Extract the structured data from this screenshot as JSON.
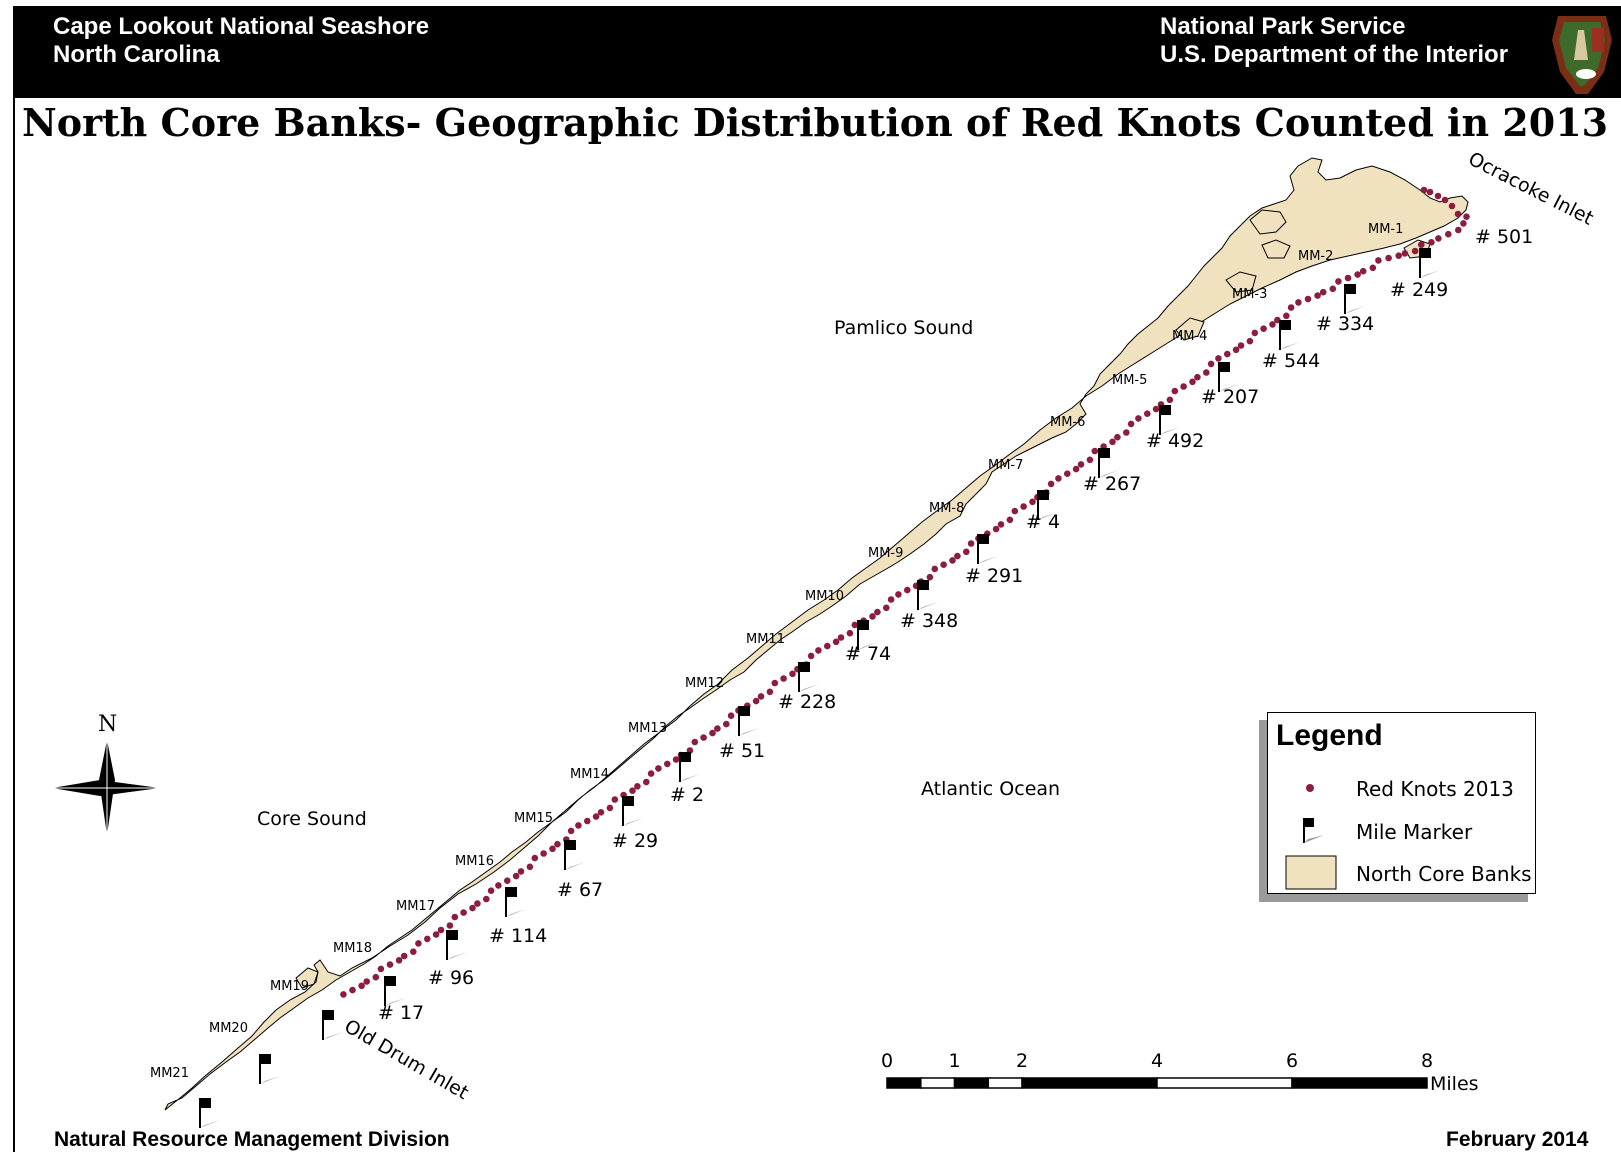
{
  "header": {
    "park_name": "Cape Lookout National Seashore",
    "state": "North Carolina",
    "agency": "National Park Service",
    "department": "U.S. Department of the Interior",
    "logo_icon": "nps-arrowhead-logo-icon"
  },
  "title": "North Core Banks- Geographic Distribution of Red Knots Counted in 2013",
  "water_labels": {
    "pamlico": "Pamlico Sound",
    "atlantic": "Atlantic Ocean",
    "core": "Core Sound",
    "ocracoke_inlet": "Ocracoke Inlet",
    "old_drum_inlet": "Old Drum Inlet"
  },
  "mile_markers": [
    {
      "label": "MM-1",
      "count": "# 501"
    },
    {
      "label": "MM-2",
      "count": "# 249"
    },
    {
      "label": "MM-3",
      "count": "# 334"
    },
    {
      "label": "MM-4",
      "count": "# 544"
    },
    {
      "label": "MM-5",
      "count": "# 207"
    },
    {
      "label": "MM-6",
      "count": "# 492"
    },
    {
      "label": "MM-7",
      "count": "# 267"
    },
    {
      "label": "MM-8",
      "count": "# 4"
    },
    {
      "label": "MM-9",
      "count": "# 291"
    },
    {
      "label": "MM10",
      "count": "# 348"
    },
    {
      "label": "MM11",
      "count": "# 74"
    },
    {
      "label": "MM12",
      "count": "# 228"
    },
    {
      "label": "MM13",
      "count": "# 51"
    },
    {
      "label": "MM14",
      "count": "# 2"
    },
    {
      "label": "MM15",
      "count": "# 29"
    },
    {
      "label": "MM16",
      "count": "# 67"
    },
    {
      "label": "MM17",
      "count": "# 114"
    },
    {
      "label": "MM18",
      "count": "# 96"
    },
    {
      "label": "MM19",
      "count": "# 17"
    },
    {
      "label": "MM20",
      "count": ""
    },
    {
      "label": "MM21",
      "count": ""
    }
  ],
  "legend": {
    "title": "Legend",
    "items": [
      {
        "label": "Red Knots 2013",
        "icon": "red-dot-icon"
      },
      {
        "label": "Mile Marker",
        "icon": "flag-icon"
      },
      {
        "label": "North Core Banks",
        "icon": "tan-swatch-icon"
      }
    ]
  },
  "north_arrow": "N",
  "scale_bar": {
    "ticks": [
      "0",
      "1",
      "2",
      "4",
      "6",
      "8"
    ],
    "unit": "Miles"
  },
  "footer": {
    "division": "Natural Resource Management Division",
    "date": "February 2014"
  },
  "colors": {
    "land": "#f0e2bf",
    "dots": "#8b1e3f",
    "header_bg": "#000000"
  }
}
